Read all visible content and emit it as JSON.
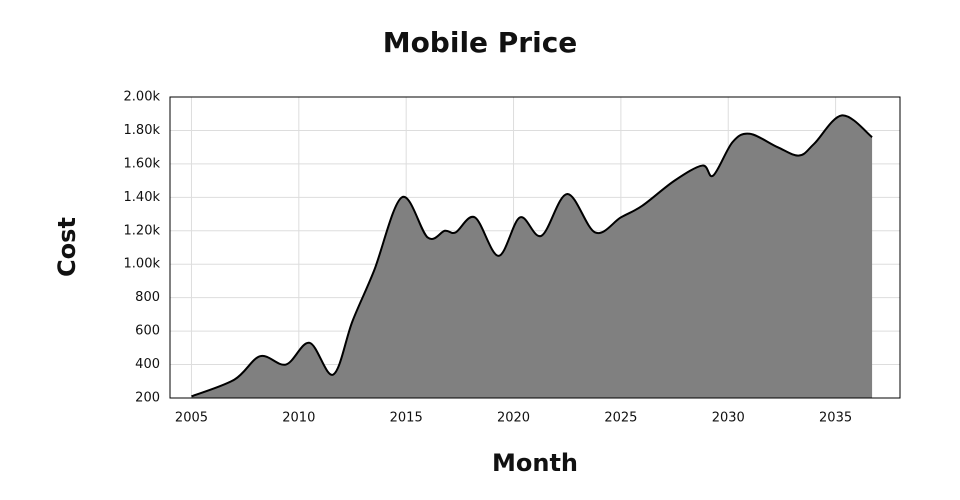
{
  "chart_data": {
    "type": "area",
    "title": "Mobile Price",
    "x_label": "Month",
    "y_label": "Cost",
    "x": [
      2005,
      2007,
      2008.2,
      2009.4,
      2010.5,
      2011.6,
      2012.5,
      2013.5,
      2014.8,
      2016,
      2016.8,
      2017.3,
      2018.2,
      2019.3,
      2020.3,
      2021.3,
      2022.5,
      2023.8,
      2025,
      2026,
      2027.5,
      2028.8,
      2029.3,
      2030.2,
      2031,
      2032.3,
      2033.3,
      2034,
      2035.3,
      2036.7
    ],
    "values": [
      210,
      310,
      450,
      400,
      530,
      340,
      660,
      960,
      1400,
      1160,
      1200,
      1190,
      1280,
      1050,
      1280,
      1170,
      1420,
      1190,
      1280,
      1350,
      1500,
      1590,
      1530,
      1730,
      1780,
      1700,
      1650,
      1720,
      1890,
      1760
    ],
    "color": "#808080",
    "line_color": "#000000",
    "xlim": [
      2004,
      2038
    ],
    "xticks": [
      2005,
      2010,
      2015,
      2020,
      2025,
      2030,
      2035
    ],
    "ylim": [
      200,
      2000
    ],
    "yticks": [
      200,
      400,
      600,
      800,
      {
        "value": 1000,
        "label": "1.00k"
      },
      {
        "value": 1200,
        "label": "1.20k"
      },
      {
        "value": 1400,
        "label": "1.40k"
      },
      {
        "value": 1600,
        "label": "1.60k"
      },
      {
        "value": 1800,
        "label": "1.80k"
      },
      {
        "value": 2000,
        "label": "2.00k"
      }
    ],
    "grid": true
  }
}
